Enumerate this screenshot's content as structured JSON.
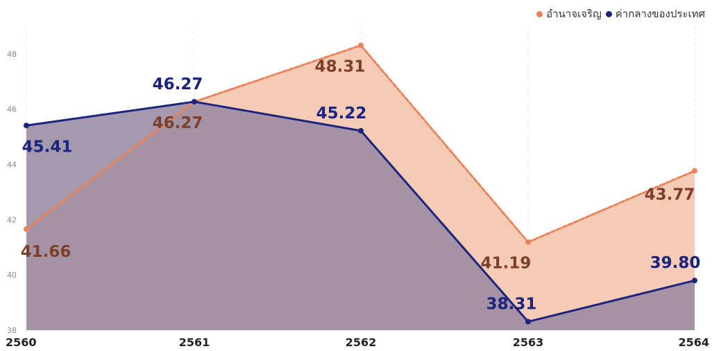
{
  "legend": {
    "items": [
      {
        "label": "อำนาจเจริญ",
        "color": "#E8845C"
      },
      {
        "label": "ค่ากลางของประเทศ",
        "color": "#1A237E"
      }
    ]
  },
  "chart_data": {
    "type": "area",
    "categories": [
      "2560",
      "2561",
      "2562",
      "2563",
      "2564"
    ],
    "series": [
      {
        "name": "อำนาจเจริญ",
        "values": [
          41.66,
          46.27,
          48.31,
          41.19,
          43.77
        ],
        "color": "#E8845C",
        "fill": "#F5CBB6",
        "label_color": "#7B3F2A"
      },
      {
        "name": "ค่ากลางของประเทศ",
        "values": [
          45.41,
          46.27,
          45.22,
          38.31,
          39.8
        ],
        "color": "#1A237E",
        "fill": "#9A8AA2",
        "label_color": "#1A237E"
      }
    ],
    "data_labels": {
      "อำนาจเจริญ": [
        "41.66",
        "46.27",
        "48.31",
        "41.19",
        "43.77"
      ],
      "ค่ากลางของประเทศ": [
        "45.41",
        "46.27",
        "45.22",
        "38.31",
        "39.80"
      ]
    },
    "yticks": [
      38,
      40,
      42,
      44,
      46,
      48
    ],
    "ylim": [
      38,
      49
    ],
    "legend_position": "top-right",
    "grid": "vertical-dashed"
  }
}
